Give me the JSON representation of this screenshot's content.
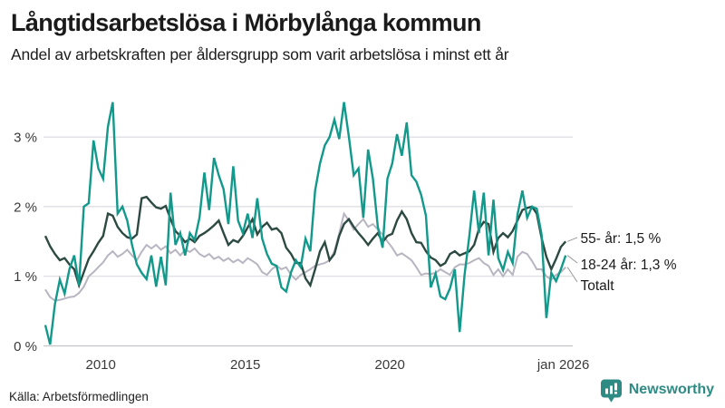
{
  "header": {
    "title": "Långtidsarbetslösa i Mörbylånga kommun",
    "subtitle": "Andel av arbetskraften per åldersgrupp som varit arbetslösa i minst ett år"
  },
  "footer": {
    "source": "Källa: Arbetsförmedlingen",
    "brand": "Newsworthy",
    "brand_color": "#2e8b84"
  },
  "chart_data": {
    "type": "line",
    "title": "Långtidsarbetslösa i Mörbylånga kommun",
    "subtitle": "Andel av arbetskraften per åldersgrupp som varit arbetslösa i minst ett år",
    "x_start": 2008.083,
    "x_step": 0.166667,
    "xlim": [
      2008.08,
      2026.25
    ],
    "ylim": [
      0,
      3.6
    ],
    "grid": true,
    "grid_color": "#dcdce0",
    "baseline_color": "#c4c4c8",
    "x_ticks": [
      {
        "value": 2010,
        "label": "2010"
      },
      {
        "value": 2015,
        "label": "2015"
      },
      {
        "value": 2020,
        "label": "2020"
      },
      {
        "value": 2026,
        "label": "jan 2026"
      }
    ],
    "y_ticks": [
      {
        "value": 0,
        "label": "0 %"
      },
      {
        "value": 1,
        "label": "1 %"
      },
      {
        "value": 2,
        "label": "2 %"
      },
      {
        "value": 3,
        "label": "3 %"
      }
    ],
    "legend_position": "end-of-line-labels",
    "series": [
      {
        "name": "Totalt",
        "color": "#b8b5c1",
        "width": 2.0,
        "end_label": "Totalt",
        "label_row": 2,
        "values": [
          0.81,
          0.7,
          0.65,
          0.66,
          0.68,
          0.7,
          0.71,
          0.76,
          0.85,
          1.0,
          1.06,
          1.13,
          1.2,
          1.3,
          1.36,
          1.28,
          1.32,
          1.38,
          1.3,
          1.23,
          1.35,
          1.45,
          1.4,
          1.45,
          1.38,
          1.43,
          1.33,
          1.38,
          1.3,
          1.38,
          1.35,
          1.4,
          1.32,
          1.28,
          1.32,
          1.25,
          1.28,
          1.22,
          1.26,
          1.2,
          1.24,
          1.19,
          1.26,
          1.22,
          1.17,
          1.06,
          1.02,
          1.1,
          1.15,
          1.1,
          1.13,
          1.02,
          0.95,
          1.02,
          1.06,
          1.1,
          1.15,
          1.17,
          1.19,
          1.23,
          1.36,
          1.62,
          1.9,
          1.8,
          1.67,
          1.75,
          1.82,
          1.71,
          1.75,
          1.67,
          1.6,
          1.5,
          1.41,
          1.3,
          1.33,
          1.28,
          1.23,
          1.13,
          1.02,
          1.04,
          1.03,
          1.05,
          1.1,
          1.06,
          1.02,
          1.13,
          1.17,
          1.17,
          1.19,
          1.23,
          1.26,
          1.19,
          1.15,
          1.02,
          1.1,
          1.0,
          1.1,
          1.02,
          1.28,
          1.35,
          1.32,
          1.22,
          1.1,
          1.1,
          1.0,
          0.95,
          1.02,
          1.06,
          1.13
        ]
      },
      {
        "name": "55- år",
        "color": "#2d4a42",
        "width": 2.4,
        "end_label": "55- år: 1,5 %",
        "label_row": 0,
        "values": [
          1.58,
          1.43,
          1.32,
          1.23,
          1.26,
          1.17,
          1.1,
          0.87,
          1.06,
          1.25,
          1.36,
          1.48,
          1.58,
          1.9,
          1.87,
          1.71,
          1.62,
          1.56,
          1.54,
          1.6,
          2.12,
          2.14,
          2.06,
          1.99,
          1.97,
          2.01,
          1.82,
          1.65,
          1.58,
          1.49,
          1.54,
          1.49,
          1.58,
          1.62,
          1.67,
          1.73,
          1.8,
          1.62,
          1.45,
          1.52,
          1.49,
          1.58,
          1.7,
          1.82,
          1.6,
          1.71,
          1.77,
          1.67,
          1.69,
          1.62,
          1.41,
          1.32,
          1.19,
          1.19,
          0.97,
          0.87,
          1.1,
          1.36,
          1.49,
          1.23,
          1.32,
          1.58,
          1.75,
          1.82,
          1.71,
          1.62,
          1.54,
          1.45,
          1.54,
          1.62,
          1.49,
          1.58,
          1.61,
          1.8,
          1.93,
          1.82,
          1.62,
          1.49,
          1.48,
          1.36,
          1.27,
          1.23,
          1.15,
          1.19,
          1.32,
          1.36,
          1.3,
          1.33,
          1.36,
          1.45,
          1.68,
          1.78,
          1.75,
          1.35,
          1.55,
          1.62,
          1.56,
          1.65,
          1.8,
          1.95,
          1.98,
          2.0,
          1.9,
          1.55,
          1.28,
          1.1,
          1.25,
          1.42,
          1.5
        ]
      },
      {
        "name": "18-24 år",
        "color": "#12998b",
        "width": 2.4,
        "end_label": "18-24 år: 1,3 %",
        "label_row": 1,
        "values": [
          0.3,
          0.02,
          0.6,
          0.95,
          0.75,
          1.1,
          1.3,
          0.87,
          2.0,
          2.05,
          2.95,
          2.55,
          2.4,
          3.15,
          3.5,
          1.9,
          2.0,
          1.8,
          1.45,
          1.17,
          1.05,
          0.96,
          1.3,
          0.85,
          1.28,
          0.87,
          2.2,
          1.45,
          1.62,
          1.3,
          1.62,
          1.52,
          1.84,
          2.49,
          1.95,
          2.7,
          2.45,
          2.25,
          1.75,
          2.58,
          1.8,
          1.62,
          1.9,
          1.55,
          2.12,
          1.54,
          1.32,
          1.18,
          1.15,
          0.84,
          0.78,
          1.06,
          1.23,
          1.13,
          1.54,
          1.36,
          2.23,
          2.62,
          2.88,
          3.0,
          3.25,
          2.97,
          3.5,
          3.0,
          2.45,
          2.55,
          1.84,
          2.82,
          2.4,
          1.71,
          1.41,
          2.4,
          2.62,
          3.04,
          2.73,
          3.21,
          2.45,
          2.36,
          2.17,
          1.87,
          0.84,
          1.04,
          0.71,
          0.67,
          0.83,
          1.1,
          0.2,
          1.02,
          1.58,
          2.23,
          1.62,
          2.2,
          1.3,
          2.1,
          1.26,
          1.09,
          1.35,
          1.19,
          1.88,
          2.23,
          1.84,
          2.0,
          1.97,
          1.6,
          0.4,
          1.05,
          0.93,
          1.1,
          1.3
        ]
      }
    ]
  }
}
